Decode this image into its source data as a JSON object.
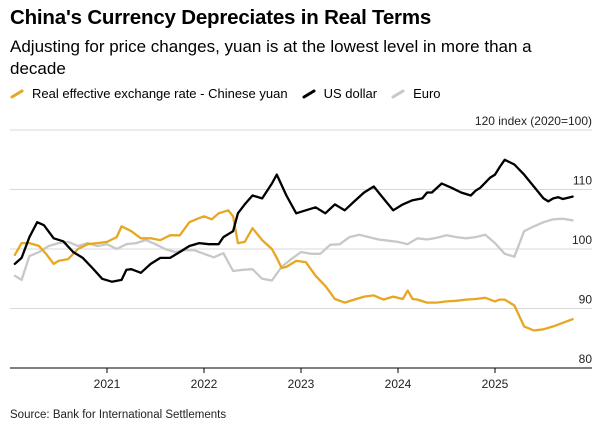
{
  "title": "China's Currency Depreciates in Real Terms",
  "subtitle": "Adjusting for price changes, yuan is at the lowest level in more than a decade",
  "source": "Source: Bank for International Settlements",
  "legend": [
    {
      "label": "Real effective exchange rate - Chinese yuan",
      "color": "#e8a721"
    },
    {
      "label": "US dollar",
      "color": "#000000"
    },
    {
      "label": "Euro",
      "color": "#c8c8c8"
    }
  ],
  "chart_data": {
    "type": "line",
    "title": "China's Currency Depreciates in Real Terms",
    "ylabel": "index (2020=100)",
    "top_tick_label": "120 index (2020=100)",
    "ylim": [
      80,
      120
    ],
    "yticks": [
      80,
      90,
      100,
      110,
      120
    ],
    "ytick_labels": [
      "80",
      "90",
      "100",
      "110",
      "120 index (2020=100)"
    ],
    "xlim": [
      2020.0,
      2026.0
    ],
    "xticks": [
      2021,
      2022,
      2023,
      2024,
      2025
    ],
    "xtick_labels": [
      "2021",
      "2022",
      "2023",
      "2024",
      "2025"
    ],
    "grid": true,
    "series": [
      {
        "name": "Real effective exchange rate - Chinese yuan",
        "color": "#e8a721",
        "x": [
          2020.05,
          2020.12,
          2020.2,
          2020.3,
          2020.38,
          2020.45,
          2020.5,
          2020.6,
          2020.7,
          2020.8,
          2020.9,
          2021.0,
          2021.1,
          2021.15,
          2021.25,
          2021.35,
          2021.45,
          2021.55,
          2021.65,
          2021.75,
          2021.85,
          2021.95,
          2022.0,
          2022.08,
          2022.15,
          2022.25,
          2022.3,
          2022.35,
          2022.42,
          2022.5,
          2022.6,
          2022.7,
          2022.75,
          2022.8,
          2022.85,
          2022.95,
          2023.05,
          2023.15,
          2023.25,
          2023.35,
          2023.45,
          2023.55,
          2023.65,
          2023.75,
          2023.85,
          2023.95,
          2024.05,
          2024.1,
          2024.15,
          2024.2,
          2024.3,
          2024.4,
          2024.5,
          2024.6,
          2024.7,
          2024.8,
          2024.9,
          2025.0,
          2025.05,
          2025.1,
          2025.2,
          2025.3,
          2025.4,
          2025.5,
          2025.6,
          2025.7,
          2025.8
        ],
        "values": [
          99.0,
          101.0,
          101.0,
          100.5,
          99.0,
          97.5,
          98.0,
          98.3,
          100.0,
          100.8,
          101.0,
          101.2,
          102.0,
          103.8,
          103.0,
          101.8,
          101.8,
          101.5,
          102.3,
          102.3,
          104.5,
          105.2,
          105.5,
          105.0,
          106.0,
          106.5,
          105.5,
          101.0,
          101.2,
          103.5,
          101.5,
          100.0,
          98.5,
          96.8,
          97.0,
          98.0,
          97.8,
          95.5,
          93.8,
          91.6,
          91.0,
          91.5,
          92.0,
          92.2,
          91.5,
          92.0,
          91.6,
          93.0,
          91.6,
          91.5,
          91.0,
          91.0,
          91.2,
          91.3,
          91.5,
          91.6,
          91.8,
          91.2,
          91.5,
          91.5,
          90.5,
          87.0,
          86.3,
          86.5,
          87.0,
          87.6,
          88.2
        ]
      },
      {
        "name": "US dollar",
        "color": "#000000",
        "x": [
          2020.05,
          2020.12,
          2020.2,
          2020.28,
          2020.35,
          2020.45,
          2020.55,
          2020.65,
          2020.75,
          2020.85,
          2020.95,
          2021.05,
          2021.15,
          2021.2,
          2021.25,
          2021.35,
          2021.45,
          2021.55,
          2021.65,
          2021.75,
          2021.85,
          2021.95,
          2022.05,
          2022.15,
          2022.2,
          2022.3,
          2022.35,
          2022.42,
          2022.5,
          2022.6,
          2022.7,
          2022.75,
          2022.85,
          2022.95,
          2023.05,
          2023.15,
          2023.25,
          2023.35,
          2023.45,
          2023.55,
          2023.65,
          2023.75,
          2023.85,
          2023.95,
          2024.05,
          2024.15,
          2024.25,
          2024.3,
          2024.35,
          2024.45,
          2024.55,
          2024.65,
          2024.75,
          2024.8,
          2024.85,
          2024.95,
          2025.0,
          2025.05,
          2025.1,
          2025.2,
          2025.3,
          2025.4,
          2025.5,
          2025.55,
          2025.6,
          2025.65,
          2025.7,
          2025.8
        ],
        "values": [
          97.5,
          98.5,
          102.0,
          104.5,
          104.0,
          101.8,
          101.3,
          99.5,
          98.5,
          96.8,
          95.0,
          94.5,
          94.8,
          96.5,
          96.6,
          96.0,
          97.5,
          98.5,
          98.5,
          99.5,
          100.5,
          101.0,
          100.8,
          100.8,
          102.0,
          103.0,
          106.0,
          107.5,
          109.0,
          108.5,
          111.0,
          112.5,
          109.0,
          106.0,
          106.5,
          107.0,
          106.0,
          107.5,
          106.5,
          108.0,
          109.5,
          110.5,
          108.5,
          106.5,
          107.5,
          108.2,
          108.5,
          109.5,
          109.5,
          111.0,
          110.3,
          109.5,
          109.0,
          109.8,
          110.3,
          112.0,
          112.5,
          113.8,
          115.0,
          114.2,
          112.5,
          110.5,
          108.5,
          108.0,
          108.5,
          108.7,
          108.4,
          108.8
        ]
      },
      {
        "name": "Euro",
        "color": "#c8c8c8",
        "x": [
          2020.05,
          2020.12,
          2020.2,
          2020.3,
          2020.4,
          2020.5,
          2020.6,
          2020.7,
          2020.8,
          2020.9,
          2021.0,
          2021.1,
          2021.2,
          2021.3,
          2021.4,
          2021.5,
          2021.6,
          2021.7,
          2021.8,
          2021.9,
          2022.0,
          2022.1,
          2022.2,
          2022.3,
          2022.4,
          2022.5,
          2022.6,
          2022.7,
          2022.8,
          2022.9,
          2023.0,
          2023.1,
          2023.2,
          2023.3,
          2023.4,
          2023.5,
          2023.6,
          2023.7,
          2023.8,
          2023.9,
          2024.0,
          2024.1,
          2024.2,
          2024.3,
          2024.4,
          2024.5,
          2024.6,
          2024.7,
          2024.8,
          2024.9,
          2025.0,
          2025.1,
          2025.2,
          2025.3,
          2025.4,
          2025.5,
          2025.6,
          2025.7,
          2025.8
        ],
        "values": [
          95.5,
          94.8,
          98.8,
          99.5,
          100.5,
          101.0,
          101.2,
          100.5,
          101.0,
          100.5,
          100.8,
          100.0,
          100.8,
          101.0,
          101.5,
          100.8,
          100.0,
          99.5,
          99.8,
          99.8,
          99.2,
          98.6,
          99.3,
          96.3,
          96.5,
          96.6,
          95.0,
          94.7,
          97.0,
          98.3,
          99.5,
          99.2,
          99.2,
          100.7,
          100.8,
          102.0,
          102.4,
          102.0,
          101.6,
          101.4,
          101.2,
          100.8,
          101.8,
          101.6,
          101.9,
          102.3,
          102.0,
          101.8,
          102.0,
          102.4,
          101.0,
          99.2,
          98.7,
          103.0,
          103.8,
          104.5,
          105.0,
          105.1,
          104.8
        ]
      }
    ]
  }
}
